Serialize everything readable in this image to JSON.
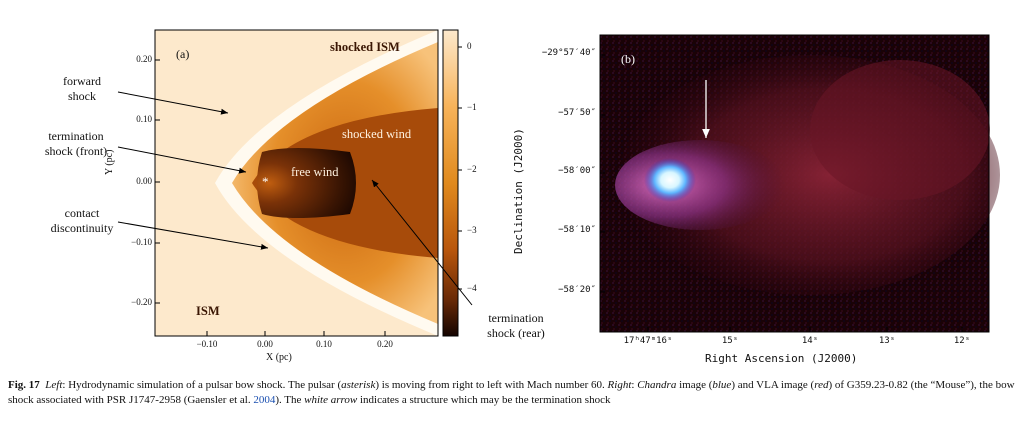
{
  "panel_a": {
    "label": "(a)",
    "colorbar_ticks": [
      "0",
      "−1",
      "−2",
      "−3",
      "−4"
    ],
    "x_ticks": [
      "−0.10",
      "0.00",
      "0.10",
      "0.20"
    ],
    "y_ticks": [
      "0.20",
      "0.10",
      "0.00",
      "−0.10",
      "−0.20"
    ],
    "xlabel": "X (pc)",
    "ylabel": "Y (pc)",
    "region_labels": {
      "shocked_ism": "shocked ISM",
      "shocked_wind": "shocked wind",
      "free_wind": "free wind",
      "ism": "ISM",
      "pulsar": "*"
    },
    "annotations": {
      "forward_shock": [
        "forward",
        "shock"
      ],
      "termination_front": [
        "termination",
        "shock (front)"
      ],
      "contact": [
        "contact",
        "discontinuity"
      ],
      "termination_rear": [
        "termination",
        "shock (rear)"
      ]
    }
  },
  "panel_b": {
    "label": "(b)",
    "y_ticks": [
      "−29°57′40″",
      "−57′50″",
      "−58′00″",
      "−58′10″",
      "−58′20″"
    ],
    "x_ticks": [
      "17ʰ47ᵐ16ˢ",
      "15ˢ",
      "14ˢ",
      "13ˢ",
      "12ˢ"
    ],
    "xlabel": "Right Ascension (J2000)",
    "ylabel": "Declination (J2000)"
  },
  "caption": {
    "fig": "Fig. 17",
    "left_label": "Left",
    "text1": ": Hydrodynamic simulation of a pulsar bow shock. The pulsar (",
    "asterisk": "asterisk",
    "text2": ") is moving from right to left with Mach number 60. ",
    "right_label": "Right",
    "text3": ": ",
    "chandra": "Chandra",
    "text4": " image (",
    "blue_word": "blue",
    "text5": ") and VLA image (",
    "red_word": "red",
    "text6": ") of G359.23-0.82 (the “Mouse”), the bow shock associated with PSR J1747-2958 (Gaensler et al. ",
    "year": "2004",
    "text7": "). The ",
    "arrow_phrase": "white arrow",
    "text8": " indicates a structure which may be the termination shock"
  }
}
